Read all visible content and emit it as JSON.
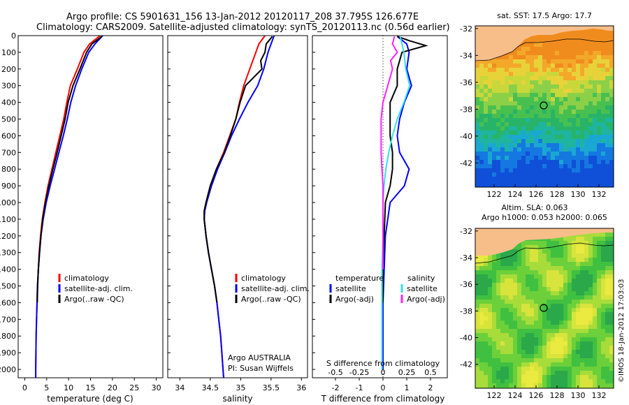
{
  "header": {
    "line1": "Argo profile: CS 5901631_156 13-Jan-2012 20120117_208 37.795S 126.677E",
    "line2": "Climatology: CARS2009. Satellite-adjusted climatology: synTS_20120113.nc (0.56d earlier)"
  },
  "colors": {
    "climatology": "#ff0000",
    "satellite": "#0000ff",
    "argo": "#000000",
    "s_satellite": "#33e0e8",
    "s_argo": "#ff22ff",
    "land": "#f7be8a"
  },
  "chart_data": [
    {
      "type": "line",
      "id": "temperature-profile",
      "xlabel": "temperature (deg C)",
      "ylabel": "",
      "xlim": [
        -1.5,
        31.5
      ],
      "ylim": [
        2050,
        0
      ],
      "xticks": [
        0,
        5,
        10,
        15,
        20,
        25,
        30
      ],
      "yticks": [
        0,
        100,
        200,
        300,
        400,
        500,
        600,
        700,
        800,
        900,
        1000,
        1100,
        1200,
        1300,
        1400,
        1500,
        1600,
        1700,
        1800,
        1900,
        2000
      ],
      "legend": [
        "climatology",
        "satellite-adj. clim.",
        "Argo(..raw -QC)"
      ],
      "series": [
        {
          "name": "climatology",
          "color": "#ff0000",
          "depth": [
            0,
            50,
            100,
            200,
            300,
            400,
            500,
            600,
            700,
            800,
            900,
            1000,
            1100,
            1200,
            1300,
            1400,
            1500,
            1600,
            1700,
            1800,
            1900,
            2000,
            2050
          ],
          "values": [
            17.2,
            14.8,
            13.5,
            12.0,
            10.4,
            9.6,
            8.9,
            8.0,
            7.1,
            6.2,
            5.3,
            4.6,
            4.0,
            3.6,
            3.3,
            3.1,
            2.9,
            2.8,
            2.7,
            2.6,
            2.55,
            2.5,
            2.5
          ]
        },
        {
          "name": "satellite-adj. clim.",
          "color": "#0000ff",
          "depth": [
            0,
            50,
            100,
            200,
            300,
            400,
            500,
            600,
            700,
            800,
            900,
            1000,
            1100,
            1200,
            1300,
            1400,
            1500,
            1600,
            1700,
            1800,
            1900,
            2000,
            2050
          ],
          "values": [
            17.8,
            16.0,
            14.6,
            13.0,
            11.6,
            10.5,
            9.7,
            8.8,
            7.8,
            6.8,
            5.8,
            4.9,
            4.2,
            3.7,
            3.4,
            3.1,
            2.9,
            2.8,
            2.7,
            2.6,
            2.55,
            2.5,
            2.5
          ]
        },
        {
          "name": "Argo(..raw -QC)",
          "color": "#000000",
          "depth": [
            5,
            50,
            100,
            200,
            300,
            400,
            500,
            600,
            700,
            800,
            900,
            1000,
            1100,
            1200,
            1300,
            1400,
            1500,
            1600
          ],
          "values": [
            17.6,
            15.3,
            14.1,
            12.6,
            11.0,
            9.9,
            9.2,
            8.3,
            7.4,
            6.4,
            5.5,
            4.7,
            4.1,
            3.7,
            3.35,
            3.1,
            2.95,
            2.85
          ]
        }
      ]
    },
    {
      "type": "line",
      "id": "salinity-profile",
      "xlabel": "salinity",
      "ylabel": "",
      "xlim": [
        33.8,
        36.1
      ],
      "ylim": [
        2050,
        0
      ],
      "xticks": [
        34,
        34.5,
        35,
        35.5,
        36
      ],
      "legend": [
        "climatology",
        "satellite-adj. clim.",
        "Argo(..raw -QC)"
      ],
      "annotation": [
        "Argo AUSTRALIA",
        "PI: Susan Wijffels"
      ],
      "series": [
        {
          "name": "climatology",
          "color": "#ff0000",
          "depth": [
            0,
            50,
            100,
            200,
            300,
            400,
            500,
            600,
            700,
            800,
            900,
            1000,
            1050,
            1100,
            1200,
            1300,
            1400,
            1500,
            1600,
            1700,
            1800,
            1900,
            2000,
            2050
          ],
          "values": [
            35.4,
            35.3,
            35.25,
            35.15,
            35.05,
            34.98,
            34.92,
            34.82,
            34.72,
            34.6,
            34.5,
            34.43,
            34.4,
            34.4,
            34.43,
            34.47,
            34.52,
            34.57,
            34.61,
            34.64,
            34.67,
            34.69,
            34.71,
            34.72
          ]
        },
        {
          "name": "satellite-adj. clim.",
          "color": "#0000ff",
          "depth": [
            0,
            50,
            100,
            200,
            300,
            400,
            500,
            600,
            700,
            800,
            900,
            1000,
            1050,
            1100,
            1200,
            1300,
            1400,
            1500,
            1600,
            1700,
            1800,
            1900,
            2000,
            2050
          ],
          "values": [
            35.55,
            35.5,
            35.45,
            35.38,
            35.28,
            35.12,
            34.98,
            34.85,
            34.74,
            34.62,
            34.52,
            34.44,
            34.41,
            34.4,
            34.43,
            34.47,
            34.52,
            34.57,
            34.61,
            34.64,
            34.67,
            34.69,
            34.71,
            34.72
          ]
        },
        {
          "name": "Argo(..raw -QC)",
          "color": "#000000",
          "depth": [
            5,
            50,
            100,
            150,
            200,
            300,
            400,
            500,
            600,
            700,
            800,
            900,
            1000,
            1050,
            1100,
            1200,
            1300,
            1400,
            1500,
            1600
          ],
          "values": [
            35.52,
            35.42,
            35.4,
            35.33,
            35.35,
            35.08,
            34.99,
            34.92,
            34.83,
            34.73,
            34.6,
            34.5,
            34.43,
            34.4,
            34.4,
            34.43,
            34.47,
            34.52,
            34.57,
            34.61
          ]
        }
      ]
    },
    {
      "type": "line",
      "id": "difference-profile",
      "xlabel": "T difference from climatology",
      "xlabel_top": "S difference from climatology",
      "xlim": [
        -2.4,
        2.4
      ],
      "ylim": [
        2050,
        0
      ],
      "xticks_t": [
        -2,
        -1,
        0,
        1,
        2
      ],
      "xticks_s": [
        -0.5,
        -0.25,
        0,
        0.25,
        0.5
      ],
      "legend_temperature": {
        "title": "temperature",
        "items": [
          "satellite",
          "Argo(-adj)"
        ]
      },
      "legend_salinity": {
        "title": "salinity",
        "items": [
          "satellite",
          "Argo(-adj)"
        ]
      },
      "series": [
        {
          "name": "temperature satellite",
          "color": "#0000ff",
          "depth": [
            5,
            50,
            100,
            200,
            300,
            400,
            500,
            600,
            700,
            800,
            900,
            1000,
            1200,
            1400,
            1600,
            1800,
            2000
          ],
          "values": [
            0.6,
            1.0,
            1.1,
            1.0,
            1.2,
            0.9,
            0.7,
            0.6,
            0.7,
            1.1,
            0.9,
            0.3,
            0.1,
            0.05,
            0.0,
            0.0,
            0.0
          ]
        },
        {
          "name": "temperature Argo(-adj)",
          "color": "#000000",
          "depth": [
            5,
            30,
            60,
            100,
            150,
            200,
            300,
            400,
            500,
            600,
            700,
            800,
            900,
            1000,
            1200,
            1400,
            1600
          ],
          "values": [
            0.6,
            1.1,
            1.8,
            0.8,
            0.7,
            0.6,
            0.6,
            0.3,
            0.3,
            0.3,
            0.4,
            0.4,
            0.3,
            0.1,
            0.05,
            0.0,
            0.0
          ]
        },
        {
          "name": "salinity satellite",
          "color": "#33e0e8",
          "depth": [
            5,
            50,
            100,
            200,
            300,
            400,
            500,
            600,
            700,
            800,
            900,
            1000,
            1200,
            1400,
            1600,
            1800,
            2000
          ],
          "values": [
            0.18,
            0.2,
            0.22,
            0.24,
            0.28,
            0.22,
            0.15,
            0.1,
            0.06,
            0.03,
            0.01,
            0.0,
            0.0,
            -0.01,
            -0.01,
            -0.01,
            -0.01
          ]
        },
        {
          "name": "salinity Argo(-adj)",
          "color": "#ff22ff",
          "depth": [
            5,
            50,
            100,
            150,
            200,
            300,
            400,
            500,
            600,
            700,
            800,
            900,
            1000,
            1200,
            1400
          ],
          "values": [
            0.12,
            0.1,
            0.15,
            0.08,
            0.1,
            0.05,
            0.0,
            -0.02,
            -0.02,
            -0.02,
            -0.01,
            0.0,
            0.0,
            0.0,
            0.0
          ]
        }
      ]
    },
    {
      "type": "heatmap",
      "id": "sst-map",
      "title": "sat. SST: 17.5  Argo: 17.7",
      "xticks": [
        122,
        124,
        126,
        128,
        130,
        132
      ],
      "yticks": [
        -32,
        -34,
        -36,
        -38,
        -40,
        -42
      ],
      "xlim": [
        120.2,
        133.4
      ],
      "ylim": [
        -43.8,
        -31.8
      ],
      "marker": {
        "lon": 126.677,
        "lat": -37.795
      }
    },
    {
      "type": "heatmap",
      "id": "sla-map",
      "title": "Altim. SLA: 0.063",
      "subtitle": "Argo h1000: 0.053  h2000: 0.065",
      "xticks": [
        122,
        124,
        126,
        128,
        130,
        132
      ],
      "yticks": [
        -32,
        -34,
        -36,
        -38,
        -40,
        -42
      ],
      "xlim": [
        120.2,
        133.4
      ],
      "ylim": [
        -43.8,
        -31.8
      ],
      "marker": {
        "lon": 126.677,
        "lat": -37.795
      }
    }
  ],
  "credit": "©IMOS 18-Jan-2012 17:03:03"
}
